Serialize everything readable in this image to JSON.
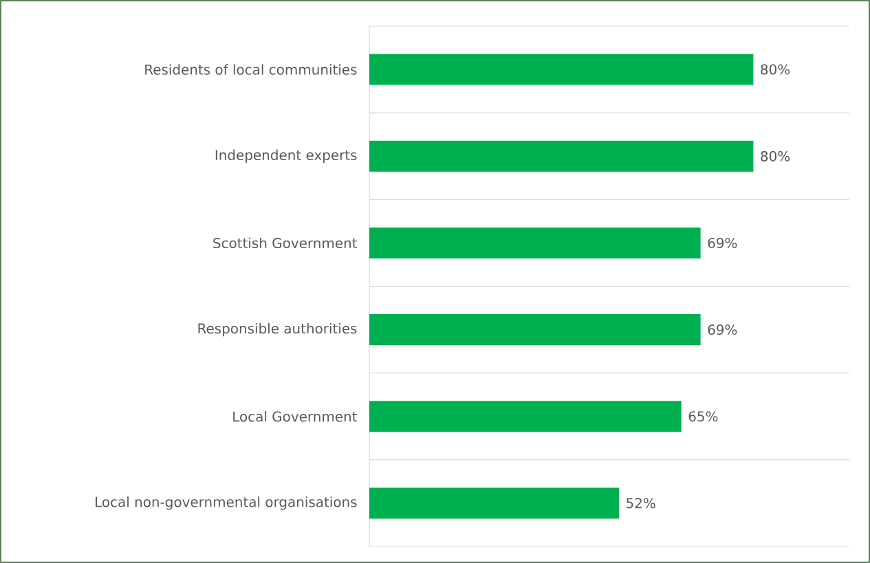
{
  "chart_data": {
    "type": "bar",
    "orientation": "horizontal",
    "categories": [
      "Residents of local communities",
      "Independent experts",
      "Scottish Government",
      "Responsible authorities",
      "Local Government",
      "Local non-governmental organisations"
    ],
    "values": [
      80,
      80,
      69,
      69,
      65,
      52
    ],
    "value_labels": [
      "80%",
      "80%",
      "69%",
      "69%",
      "65%",
      "52%"
    ],
    "color": "#00b050",
    "xlim": [
      0,
      100
    ],
    "grid": "y"
  }
}
